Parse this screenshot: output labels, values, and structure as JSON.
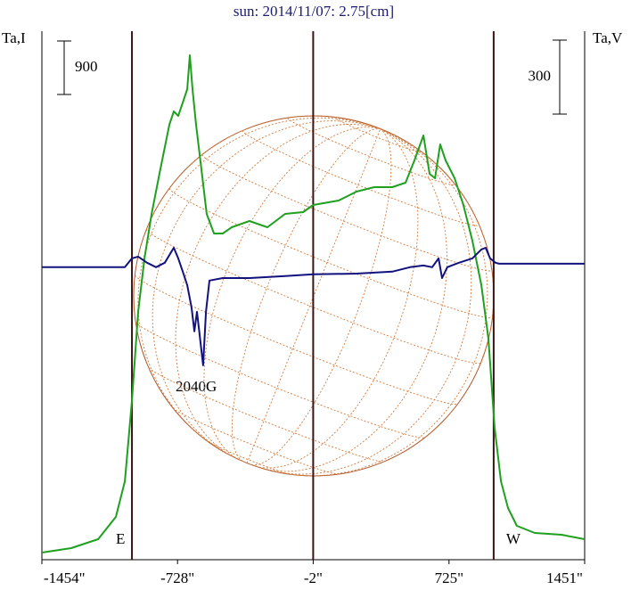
{
  "chart_data": {
    "type": "line",
    "title": "sun: 2014/11/07: 2.75[cm]",
    "y_label": "Ta,I",
    "y2_label": "Ta,V",
    "annotation": "2040G",
    "xlim": [
      -1454,
      1451
    ],
    "xticks": [
      {
        "value": -1454,
        "label": "-1454\""
      },
      {
        "value": -728,
        "label": "-728\""
      },
      {
        "value": -2,
        "label": "-2\""
      },
      {
        "value": 725,
        "label": "725\""
      },
      {
        "value": 1451,
        "label": "1451\""
      }
    ],
    "ylim": [
      0,
      8895
    ],
    "y2lim": [
      -1193,
      950
    ],
    "vlines": [
      -972,
      -2,
      964
    ],
    "limb_labels": [
      "E",
      "W"
    ],
    "scale_bars": [
      {
        "value": 900,
        "axis": "y"
      },
      {
        "value": 300,
        "axis": "y2"
      }
    ],
    "series": [
      {
        "name": "Ta,I",
        "color": "#1fa01f",
        "axis": "y",
        "x": [
          -1454,
          -1297,
          -1153,
          -1058,
          -1010,
          -972,
          -939,
          -905,
          -867,
          -820,
          -772,
          -748,
          -724,
          -700,
          -676,
          -662,
          -648,
          -629,
          -600,
          -572,
          -533,
          -486,
          -438,
          -343,
          -247,
          -152,
          -56,
          -2,
          134,
          230,
          325,
          421,
          492,
          540,
          588,
          621,
          650,
          678,
          707,
          755,
          802,
          850,
          898,
          936,
          969,
          1003,
          1041,
          1088,
          1184,
          1327,
          1451
        ],
        "values": [
          120,
          195,
          345,
          720,
          1320,
          2670,
          4170,
          5070,
          5820,
          6570,
          7320,
          7545,
          7470,
          7695,
          7920,
          8490,
          7920,
          7320,
          6570,
          5820,
          5490,
          5490,
          5595,
          5700,
          5595,
          5820,
          5850,
          5970,
          6045,
          6195,
          6270,
          6270,
          6345,
          6720,
          7140,
          6495,
          6420,
          6990,
          6720,
          6420,
          5970,
          5370,
          4620,
          3720,
          2220,
          1320,
          870,
          570,
          450,
          420,
          345
        ]
      },
      {
        "name": "Ta,V",
        "color": "#12127e",
        "axis": "y2",
        "x": [
          -1454,
          -1201,
          -1010,
          -972,
          -939,
          -891,
          -843,
          -796,
          -748,
          -724,
          -700,
          -676,
          -653,
          -638,
          -624,
          -610,
          -591,
          -576,
          -557,
          -486,
          -343,
          -152,
          -2,
          230,
          421,
          516,
          588,
          635,
          669,
          688,
          716,
          778,
          850,
          898,
          921,
          945,
          974,
          993,
          1451
        ],
        "values": [
          -7,
          -7,
          -7,
          29,
          36,
          11,
          -7,
          11,
          72,
          29,
          -25,
          -80,
          -170,
          -267,
          -188,
          -278,
          -405,
          -188,
          -61,
          -51,
          -51,
          -43,
          -36,
          -33,
          -25,
          -7,
          0,
          -7,
          29,
          -51,
          -7,
          11,
          29,
          65,
          72,
          29,
          11,
          7,
          7
        ]
      }
    ]
  }
}
